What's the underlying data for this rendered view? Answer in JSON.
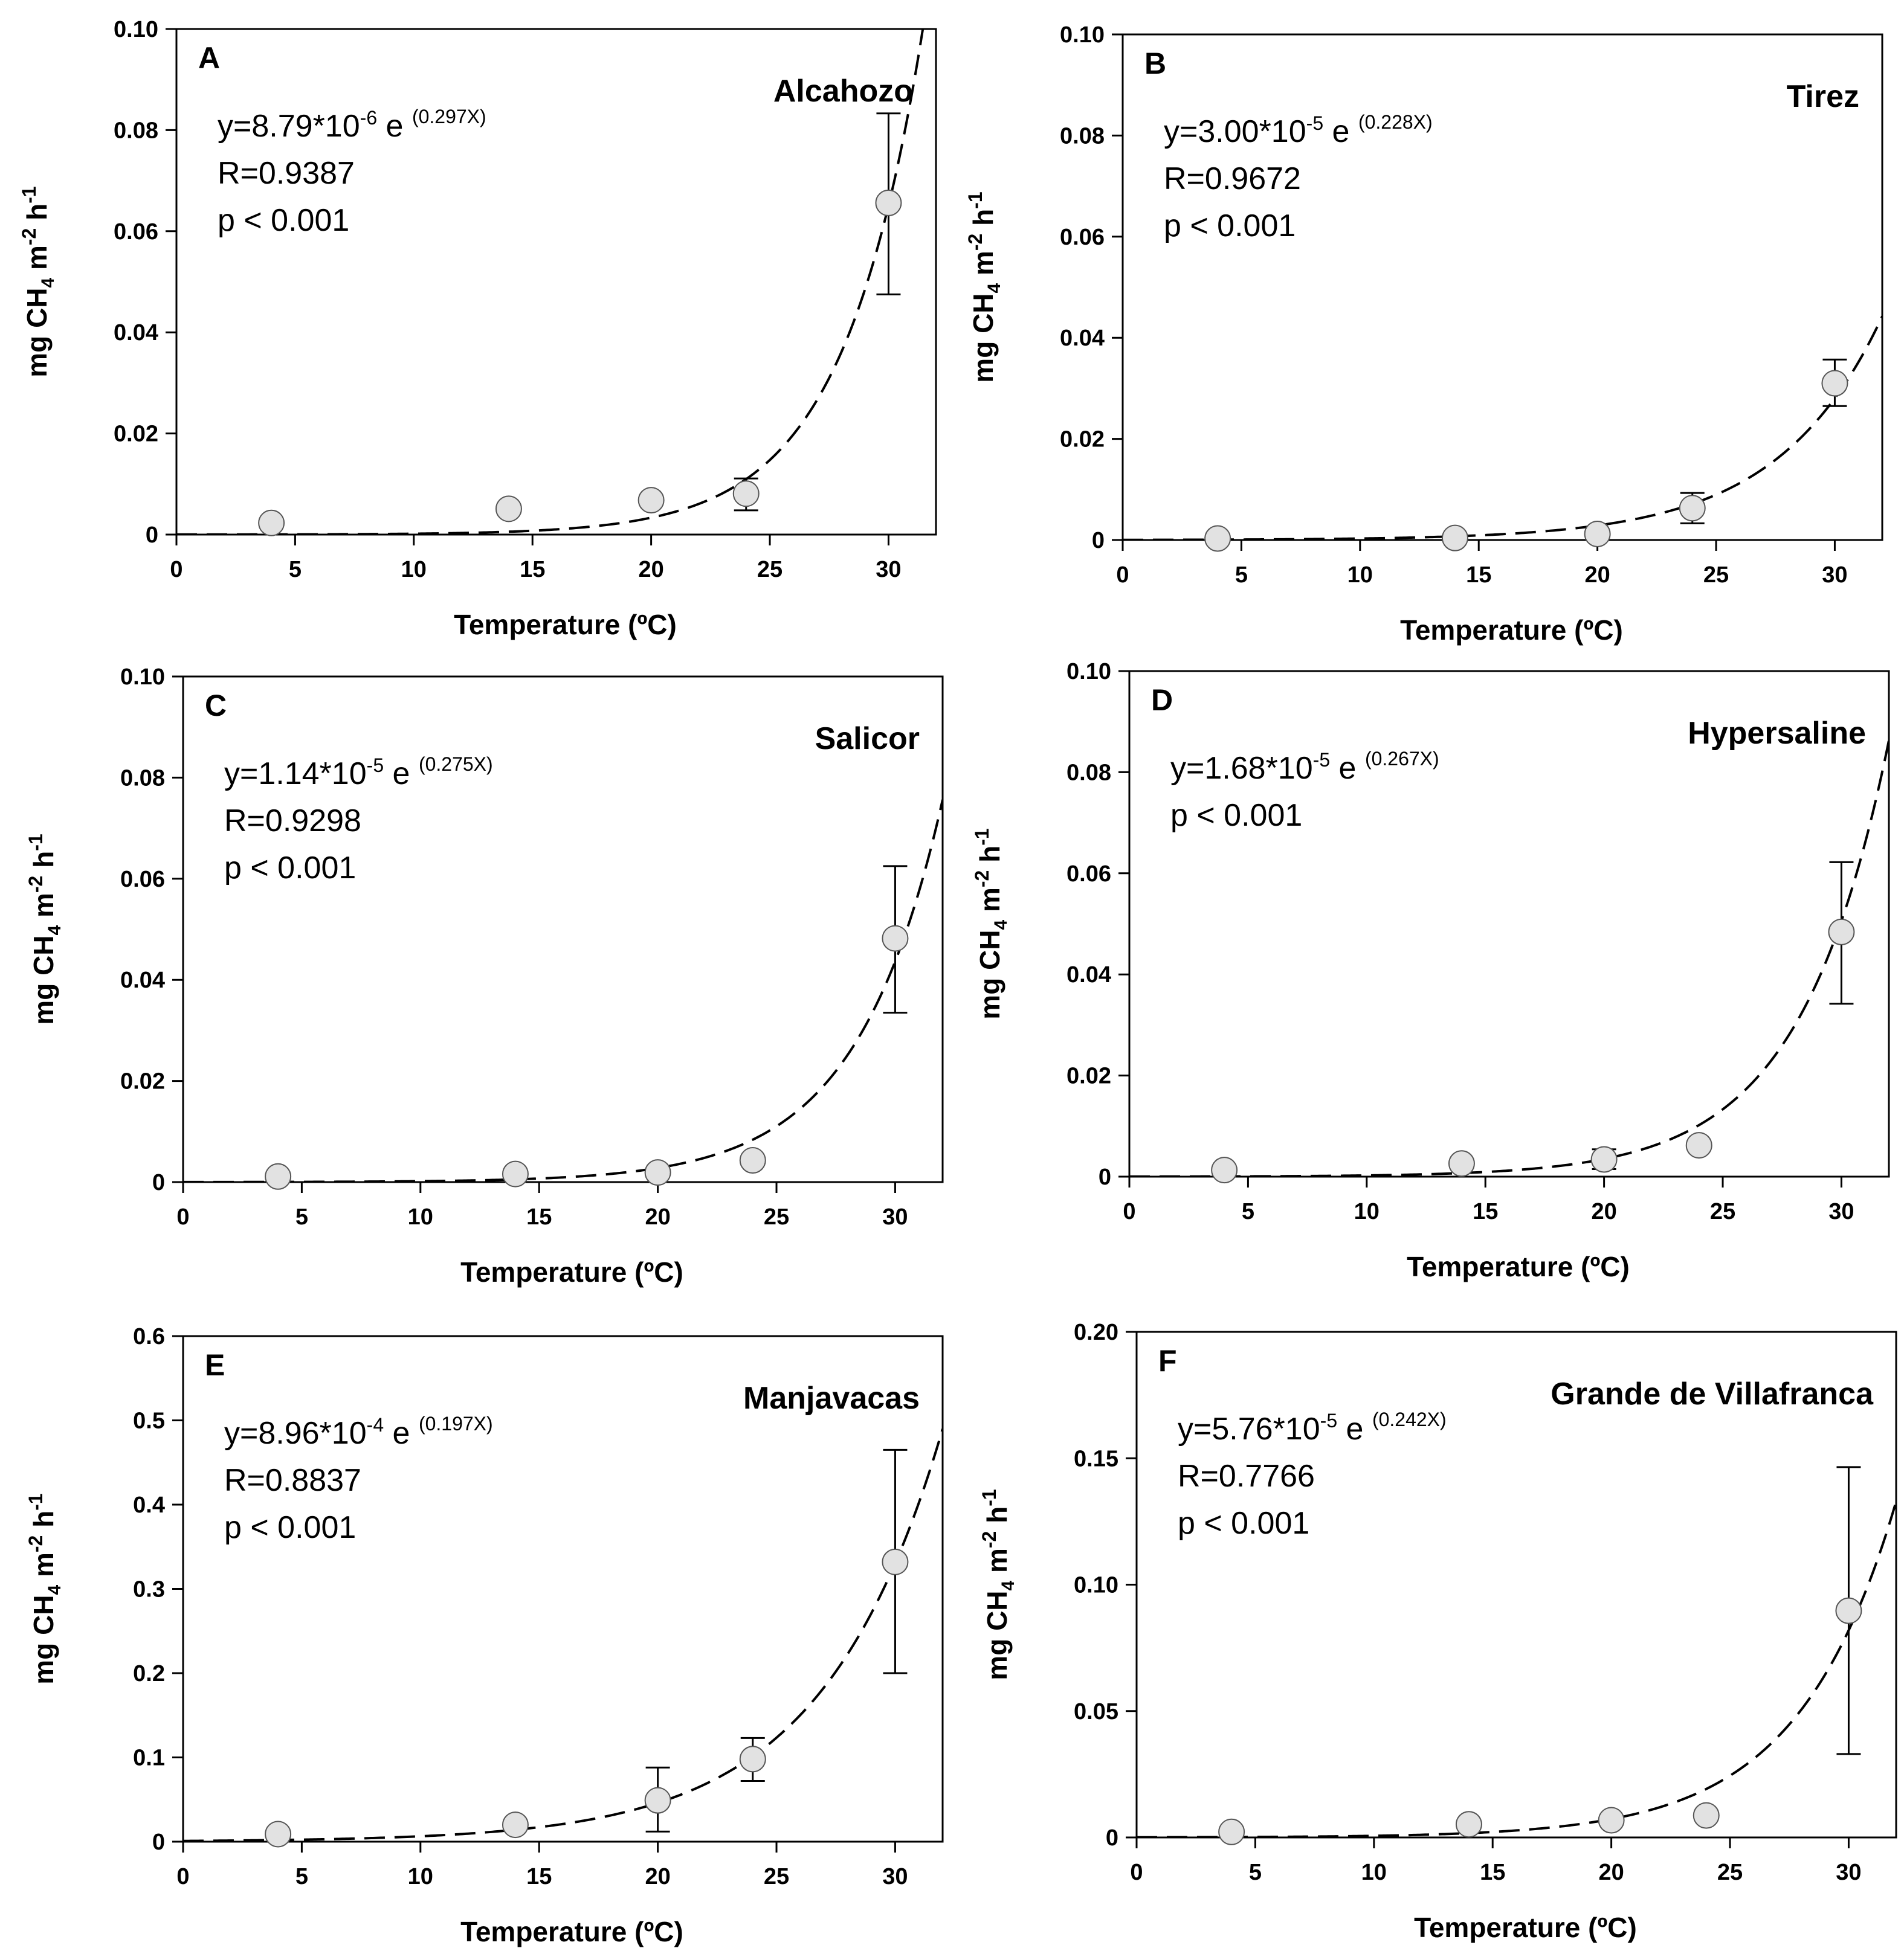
{
  "figure": {
    "x_axis_title": "Temperature (ºC)",
    "y_axis_title": {
      "prefix": "mg CH",
      "sub": "4",
      "mid1": " m",
      "sup1": "-2",
      "mid2": " h",
      "sup2": "-1"
    }
  },
  "chart_data": [
    {
      "type": "scatter",
      "letter": "A",
      "name": "Alcahozo",
      "xlim": [
        0,
        32
      ],
      "ylim": [
        0,
        0.1
      ],
      "xticks": [
        "0",
        "5",
        "10",
        "15",
        "20",
        "25",
        "30"
      ],
      "yticks": [
        "0",
        "0.02",
        "0.04",
        "0.06",
        "0.08",
        "0.10"
      ],
      "ytick_values": [
        0,
        0.02,
        0.04,
        0.06,
        0.08,
        0.1
      ],
      "x": [
        4,
        14,
        20,
        24,
        30
      ],
      "y": [
        0.0023,
        0.0051,
        0.0068,
        0.0081,
        0.0656
      ],
      "err_low": [
        null,
        null,
        null,
        0.0048,
        0.0475
      ],
      "err_high": [
        null,
        null,
        null,
        0.0111,
        0.0833
      ],
      "fit": {
        "a": 8.79e-06,
        "b": 0.297
      },
      "equation": {
        "pre": "y=8.79*10",
        "exp1": "-6",
        "mid": " e ",
        "exp2": "(0.297X)"
      },
      "stats": [
        "R=0.9387",
        "p < 0.001"
      ]
    },
    {
      "type": "scatter",
      "letter": "B",
      "name": "Tirez",
      "xlim": [
        0,
        32
      ],
      "ylim": [
        0,
        0.1
      ],
      "xticks": [
        "0",
        "5",
        "10",
        "15",
        "20",
        "25",
        "30"
      ],
      "yticks": [
        "0",
        "0.02",
        "0.04",
        "0.06",
        "0.08",
        "0.10"
      ],
      "ytick_values": [
        0,
        0.02,
        0.04,
        0.06,
        0.08,
        0.1
      ],
      "x": [
        4,
        14,
        20,
        24,
        30
      ],
      "y": [
        0.0003,
        0.0004,
        0.0012,
        0.0063,
        0.031
      ],
      "err_low": [
        null,
        null,
        null,
        0.0033,
        0.0265
      ],
      "err_high": [
        null,
        null,
        null,
        0.0093,
        0.0357
      ],
      "fit": {
        "a": 3e-05,
        "b": 0.228
      },
      "equation": {
        "pre": "y=3.00*10",
        "exp1": "-5",
        "mid": " e ",
        "exp2": "(0.228X)"
      },
      "stats": [
        "R=0.9672",
        "p < 0.001"
      ]
    },
    {
      "type": "scatter",
      "letter": "C",
      "name": "Salicor",
      "xlim": [
        0,
        32
      ],
      "ylim": [
        0,
        0.1
      ],
      "xticks": [
        "0",
        "5",
        "10",
        "15",
        "20",
        "25",
        "30"
      ],
      "yticks": [
        "0",
        "0.02",
        "0.04",
        "0.06",
        "0.08",
        "0.10"
      ],
      "ytick_values": [
        0,
        0.02,
        0.04,
        0.06,
        0.08,
        0.1
      ],
      "x": [
        4,
        14,
        20,
        24,
        30
      ],
      "y": [
        0.0011,
        0.0016,
        0.0019,
        0.0043,
        0.0482
      ],
      "err_low": [
        null,
        null,
        null,
        null,
        0.0335
      ],
      "err_high": [
        null,
        null,
        null,
        null,
        0.0625
      ],
      "fit": {
        "a": 1.14e-05,
        "b": 0.275
      },
      "equation": {
        "pre": "y=1.14*10",
        "exp1": "-5",
        "mid": " e ",
        "exp2": "(0.275X)"
      },
      "stats": [
        "R=0.9298",
        "p < 0.001"
      ]
    },
    {
      "type": "scatter",
      "letter": "D",
      "name": "Hypersaline",
      "xlim": [
        0,
        32
      ],
      "ylim": [
        0,
        0.1
      ],
      "xticks": [
        "0",
        "5",
        "10",
        "15",
        "20",
        "25",
        "30"
      ],
      "yticks": [
        "0",
        "0.02",
        "0.04",
        "0.06",
        "0.08",
        "0.10"
      ],
      "ytick_values": [
        0,
        0.02,
        0.04,
        0.06,
        0.08,
        0.1
      ],
      "x": [
        4,
        14,
        20,
        24,
        30
      ],
      "y": [
        0.0013,
        0.0026,
        0.0034,
        0.0062,
        0.0484
      ],
      "err_low": [
        null,
        null,
        0.0015,
        null,
        0.0342
      ],
      "err_high": [
        null,
        null,
        0.0054,
        null,
        0.0622
      ],
      "fit": {
        "a": 1.68e-05,
        "b": 0.267
      },
      "equation": {
        "pre": "y=1.68*10",
        "exp1": "-5",
        "mid": " e ",
        "exp2": "(0.267X)"
      },
      "stats": [
        "p < 0.001"
      ]
    },
    {
      "type": "scatter",
      "letter": "E",
      "name": "Manjavacas",
      "xlim": [
        0,
        32
      ],
      "ylim": [
        0,
        0.6
      ],
      "xticks": [
        "0",
        "5",
        "10",
        "15",
        "20",
        "25",
        "30"
      ],
      "yticks": [
        "0",
        "0.1",
        "0.2",
        "0.3",
        "0.4",
        "0.5",
        "0.6"
      ],
      "ytick_values": [
        0,
        0.1,
        0.2,
        0.3,
        0.4,
        0.5,
        0.6
      ],
      "x": [
        4,
        14,
        20,
        24,
        30
      ],
      "y": [
        0.009,
        0.02,
        0.049,
        0.098,
        0.332
      ],
      "err_low": [
        null,
        null,
        0.012,
        0.072,
        0.2
      ],
      "err_high": [
        null,
        null,
        0.088,
        0.123,
        0.465
      ],
      "fit": {
        "a": 0.000896,
        "b": 0.197
      },
      "equation": {
        "pre": "y=8.96*10",
        "exp1": "-4",
        "mid": " e ",
        "exp2": "(0.197X)"
      },
      "stats": [
        "R=0.8837",
        "p < 0.001"
      ]
    },
    {
      "type": "scatter",
      "letter": "F",
      "name": "Grande de Villafranca",
      "xlim": [
        0,
        32
      ],
      "ylim": [
        0,
        0.2
      ],
      "xticks": [
        "0",
        "5",
        "10",
        "15",
        "20",
        "25",
        "30"
      ],
      "yticks": [
        "0",
        "0.05",
        "0.10",
        "0.15",
        "0.20"
      ],
      "ytick_values": [
        0,
        0.05,
        0.1,
        0.15,
        0.2
      ],
      "x": [
        4,
        14,
        20,
        24,
        30
      ],
      "y": [
        0.0022,
        0.0052,
        0.0068,
        0.0087,
        0.0897
      ],
      "err_low": [
        null,
        null,
        null,
        null,
        0.033
      ],
      "err_high": [
        null,
        null,
        null,
        null,
        0.1465
      ],
      "fit": {
        "a": 5.76e-05,
        "b": 0.242
      },
      "equation": {
        "pre": "y=5.76*10",
        "exp1": "-5",
        "mid": " e ",
        "exp2": "(0.242X)"
      },
      "stats": [
        "R=0.7766",
        "p < 0.001"
      ]
    }
  ]
}
